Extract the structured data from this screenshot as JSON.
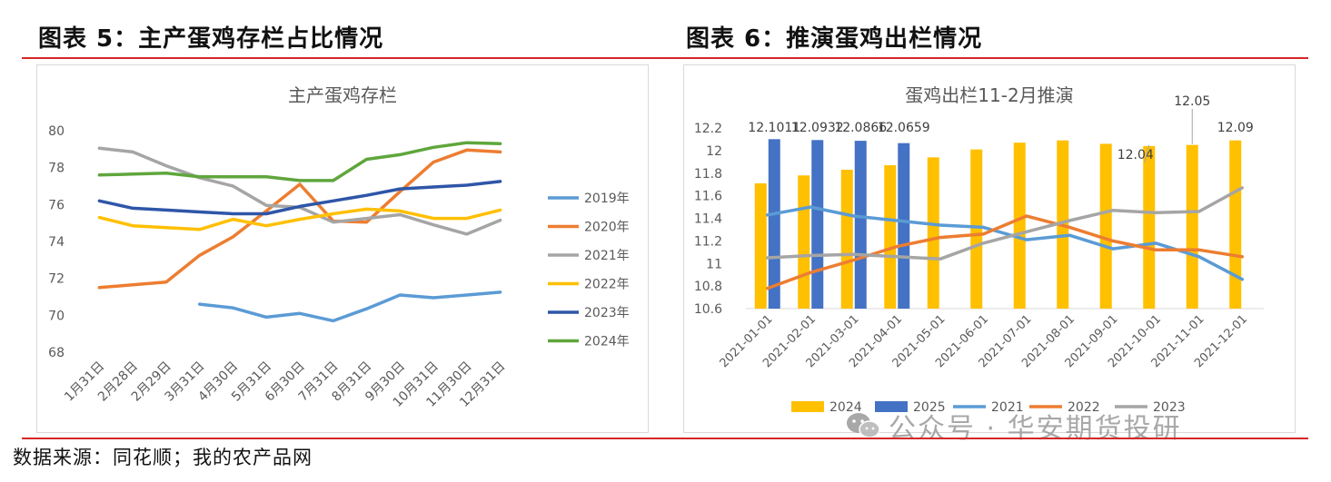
{
  "figures": [
    {
      "title": "图表 5：主产蛋鸡存栏占比情况"
    },
    {
      "title": "图表 6：推演蛋鸡出栏情况"
    }
  ],
  "source": "数据来源：同花顺；我的农产品网",
  "watermark": "公众号 · 华安期货投研",
  "colors": {
    "rule": "#d62728",
    "s2019": "#5b9bd5",
    "s2020": "#ed7d31",
    "s2021": "#a5a5a5",
    "s2022": "#ffc000",
    "s2023": "#4472c4",
    "s2024": "#70ad47"
  },
  "chart_data": [
    {
      "type": "line",
      "title": "主产蛋鸡存栏",
      "categories": [
        "1月31日",
        "2月28日",
        "2月29日",
        "3月31日",
        "4月30日",
        "5月31日",
        "6月30日",
        "7月31日",
        "8月31日",
        "9月30日",
        "10月31日",
        "11月30日",
        "12月31日"
      ],
      "ylim": [
        68,
        80
      ],
      "yticks": [
        68,
        70,
        72,
        74,
        76,
        78,
        80
      ],
      "grid": false,
      "legend": "right",
      "series": [
        {
          "name": "2019年",
          "color": "#5b9bd5",
          "values": [
            null,
            null,
            null,
            70.6,
            70.4,
            69.9,
            70.1,
            69.7,
            70.35,
            71.1,
            70.95,
            71.1,
            71.25
          ]
        },
        {
          "name": "2020年",
          "color": "#ed7d31",
          "values": [
            71.5,
            71.65,
            71.8,
            73.25,
            74.25,
            75.65,
            77.1,
            75.1,
            75.05,
            76.7,
            78.3,
            78.95,
            78.85
          ]
        },
        {
          "name": "2021年",
          "color": "#a5a5a5",
          "values": [
            79.05,
            78.85,
            78.1,
            77.45,
            77.0,
            75.95,
            75.85,
            75.05,
            75.25,
            75.45,
            74.9,
            74.4,
            75.15
          ]
        },
        {
          "name": "2022年",
          "color": "#ffc000",
          "values": [
            75.3,
            74.85,
            74.75,
            74.65,
            75.2,
            74.85,
            75.2,
            75.5,
            75.75,
            75.65,
            75.25,
            75.25,
            75.7
          ]
        },
        {
          "name": "2023年",
          "color": "#2e56a8",
          "values": [
            76.2,
            75.8,
            75.7,
            75.6,
            75.5,
            75.5,
            75.9,
            76.2,
            76.5,
            76.85,
            76.95,
            77.05,
            77.25
          ]
        },
        {
          "name": "2024年",
          "color": "#5fa63c",
          "values": [
            77.6,
            77.65,
            77.7,
            77.5,
            77.5,
            77.5,
            77.3,
            77.3,
            78.45,
            78.7,
            79.1,
            79.35,
            79.3
          ]
        }
      ]
    },
    {
      "type": "bar",
      "title": "蛋鸡出栏11-2月推演",
      "categories": [
        "2021-01-01",
        "2021-02-01",
        "2021-03-01",
        "2021-04-01",
        "2021-05-01",
        "2021-06-01",
        "2021-07-01",
        "2021-08-01",
        "2021-09-01",
        "2021-10-01",
        "2021-11-01",
        "2021-12-01"
      ],
      "ylim": [
        10.6,
        12.2
      ],
      "yticks": [
        10.6,
        10.8,
        11,
        11.2,
        11.4,
        11.6,
        11.8,
        12,
        12.2
      ],
      "grid": false,
      "legend": "bottom",
      "bars": [
        {
          "name": "2024",
          "color": "#ffc000",
          "values": [
            11.71,
            11.78,
            11.83,
            11.87,
            11.94,
            12.01,
            12.07,
            12.09,
            12.06,
            12.04,
            12.05,
            12.09
          ]
        },
        {
          "name": "2025",
          "color": "#4472c4",
          "values": [
            12.1011,
            12.0932,
            12.0866,
            12.0659,
            null,
            null,
            null,
            null,
            null,
            null,
            null,
            null
          ]
        }
      ],
      "lines": [
        {
          "name": "2021",
          "color": "#5b9bd5",
          "values": [
            11.43,
            11.5,
            11.42,
            11.38,
            11.34,
            11.32,
            11.21,
            11.25,
            11.13,
            11.18,
            11.06,
            10.86
          ]
        },
        {
          "name": "2022",
          "color": "#ed7d31",
          "values": [
            10.78,
            10.92,
            11.03,
            11.15,
            11.23,
            11.26,
            11.42,
            11.32,
            11.2,
            11.12,
            11.12,
            11.06
          ]
        },
        {
          "name": "2023",
          "color": "#a5a5a5",
          "values": [
            11.05,
            11.07,
            11.08,
            11.06,
            11.04,
            11.18,
            11.28,
            11.38,
            11.47,
            11.45,
            11.46,
            11.67
          ]
        }
      ],
      "data_labels": [
        "12.1011",
        "12.0932",
        "12.0866",
        "12.0659",
        "12.04",
        "12.05",
        "12.09"
      ]
    }
  ]
}
